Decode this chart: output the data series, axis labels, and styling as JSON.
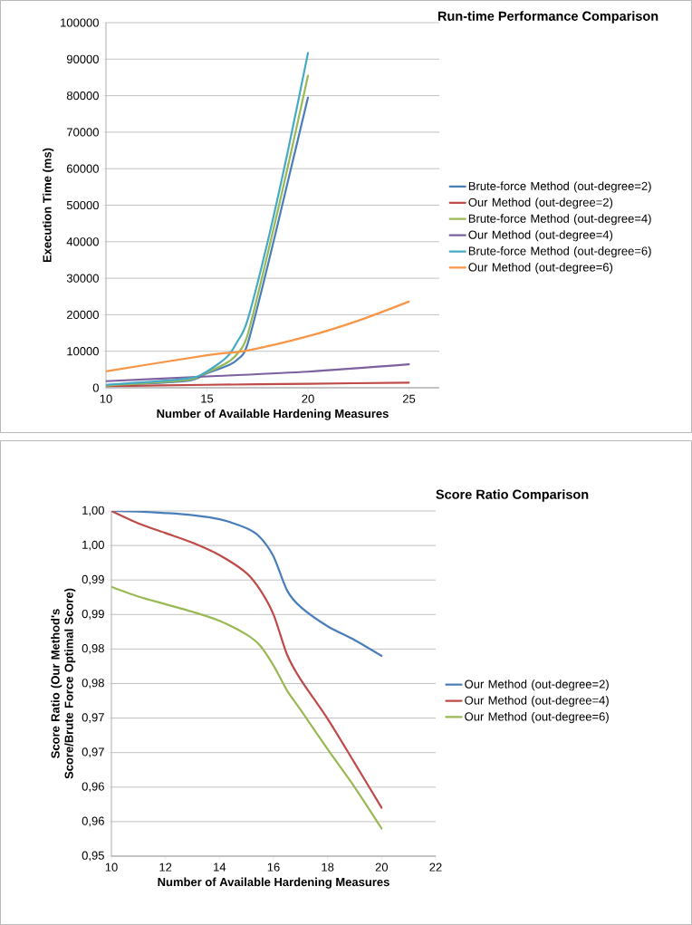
{
  "chart_data": [
    {
      "type": "line",
      "title": "Run-time Performance Comparison",
      "xlabel": "Number of Available Hardening Measures",
      "ylabel": "Execution Time (ms)",
      "xlim": [
        10,
        26.5
      ],
      "xticks": [
        10,
        15,
        20,
        25
      ],
      "ylim": [
        0,
        100000
      ],
      "yticks": [
        0,
        10000,
        20000,
        30000,
        40000,
        50000,
        60000,
        70000,
        80000,
        90000,
        100000
      ],
      "grid": "y",
      "legend": "right",
      "series": [
        {
          "name": "Brute-force Method (out-degree=2)",
          "color": "#4a7ebb",
          "x": [
            10,
            14,
            15,
            16,
            16.5,
            17,
            18,
            19,
            20
          ],
          "values": [
            700,
            1900,
            4000,
            6000,
            7700,
            11800,
            33300,
            56400,
            79500
          ]
        },
        {
          "name": "Our Method  (out-degree=2)",
          "color": "#be4b48",
          "x": [
            10,
            15,
            20,
            25
          ],
          "values": [
            400,
            800,
            1100,
            1400
          ]
        },
        {
          "name": "Brute-force Method (out-degree=4)",
          "color": "#98b954",
          "x": [
            10,
            14,
            15,
            16,
            16.5,
            17,
            18,
            19,
            20
          ],
          "values": [
            600,
            2100,
            4200,
            6900,
            9300,
            14300,
            36600,
            60500,
            85500
          ]
        },
        {
          "name": "Our Method  (out-degree=4)",
          "color": "#7d60a0",
          "x": [
            10,
            15,
            20,
            25
          ],
          "values": [
            1800,
            3100,
            4400,
            6400
          ]
        },
        {
          "name": "Brute-force Method (out-degree=6)",
          "color": "#46aac5",
          "x": [
            10,
            14,
            15,
            16,
            16.5,
            17,
            18,
            19,
            20
          ],
          "values": [
            800,
            2500,
            4500,
            8500,
            12600,
            18400,
            39900,
            64700,
            91700
          ]
        },
        {
          "name": "Our Method  (out-degree=6)",
          "color": "#f79646",
          "x": [
            10,
            15,
            17,
            20,
            22.5,
            25
          ],
          "values": [
            4500,
            8900,
            10200,
            14100,
            18400,
            23600
          ]
        }
      ]
    },
    {
      "type": "line",
      "title": "Score Ratio Comparison",
      "xlabel": "Number of Available Hardening Measures",
      "ylabel": "Score Ratio (Our Method's Score/Brute Force Optimal Score)",
      "xlim": [
        10,
        22
      ],
      "xticks": [
        10,
        12,
        14,
        16,
        18,
        20,
        22
      ],
      "ylim": [
        0.95,
        1.0
      ],
      "yticks": [
        {
          "value": 0.95,
          "label": "0,95"
        },
        {
          "value": 0.955,
          "label": "0,96"
        },
        {
          "value": 0.96,
          "label": "0,96"
        },
        {
          "value": 0.965,
          "label": "0,97"
        },
        {
          "value": 0.97,
          "label": "0,97"
        },
        {
          "value": 0.975,
          "label": "0,98"
        },
        {
          "value": 0.98,
          "label": "0,98"
        },
        {
          "value": 0.985,
          "label": "0,99"
        },
        {
          "value": 0.99,
          "label": "0,99"
        },
        {
          "value": 0.995,
          "label": "1,00"
        },
        {
          "value": 1.0,
          "label": "1,00"
        }
      ],
      "grid": "y",
      "legend": "right",
      "series": [
        {
          "name": "Our Method  (out-degree=2)",
          "color": "#4a7ebb",
          "x": [
            10,
            11,
            12,
            13,
            14,
            15,
            15.5,
            16,
            16.5,
            17,
            18,
            19,
            20
          ],
          "values": [
            1.0,
            0.9999,
            0.9997,
            0.9994,
            0.9988,
            0.9975,
            0.9962,
            0.9934,
            0.9885,
            0.9861,
            0.9833,
            0.9813,
            0.979
          ]
        },
        {
          "name": "Our Method  (out-degree=4)",
          "color": "#be4b48",
          "x": [
            10,
            11,
            12,
            13,
            14,
            15,
            15.5,
            16,
            16.5,
            17,
            18,
            19,
            20
          ],
          "values": [
            1.0,
            0.9982,
            0.9968,
            0.9954,
            0.9936,
            0.991,
            0.9886,
            0.985,
            0.9792,
            0.9756,
            0.9699,
            0.9635,
            0.957
          ]
        },
        {
          "name": "Our Method  (out-degree=6)",
          "color": "#98b954",
          "x": [
            10,
            11,
            12,
            13,
            14,
            15,
            15.5,
            16,
            16.5,
            17,
            18,
            19,
            20
          ],
          "values": [
            0.989,
            0.9876,
            0.9865,
            0.9854,
            0.9841,
            0.9821,
            0.9805,
            0.9776,
            0.974,
            0.9712,
            0.9655,
            0.96,
            0.954
          ]
        }
      ]
    }
  ]
}
